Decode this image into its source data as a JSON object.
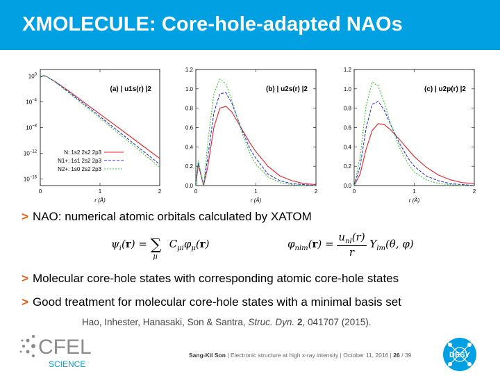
{
  "slide": {
    "title": "XMOLECULE: Core-hole-adapted NAOs",
    "bullets": [
      "NAO: numerical atomic orbitals calculated by XATOM",
      "Molecular core-hole states with corresponding atomic core-hole states",
      "Good treatment for molecular core-hole states with a minimal basis set"
    ],
    "bullet_marker": ">",
    "citation_authors": "Hao, Inhester, Hanasaki, Son & Santra,",
    "citation_journal": "Struc. Dyn.",
    "citation_volume": "2",
    "citation_rest": ", 041707 (2015).",
    "footer": {
      "author": "Sang-Kil Son",
      "talk": "Electronic structure at high x-ray intensity",
      "date": "October 11, 2016",
      "page": "26",
      "total": "39"
    },
    "logos": {
      "cfel_top": "CFEL",
      "cfel_bottom": "SCIENCE",
      "desy": "DESY"
    }
  },
  "colors": {
    "title_bar": "#00a0e3",
    "bullet_marker": "#e9590c",
    "series_n": "#e8212b",
    "series_n1": "#2f2fe8",
    "series_n2": "#2ecc2e"
  },
  "chart_data": [
    {
      "type": "line",
      "panel": "(a)",
      "title": "(a) | u1s(r) |2",
      "xlabel": "r (Å)",
      "ylabel": "",
      "yscale": "log",
      "xlim": [
        0,
        2
      ],
      "ylim": [
        1e-17,
        10.0
      ],
      "xticks": [
        "0",
        "1",
        "2"
      ],
      "yticks": [
        "10^0",
        "10^-4",
        "10^-8",
        "10^-12",
        "10^-16"
      ],
      "legend_position": "bottom-left",
      "series": [
        {
          "name": "N: 1s2 2s2 2p3",
          "x": [
            0,
            0.05,
            0.1,
            0.25,
            0.5,
            0.75,
            1.0,
            1.25,
            1.5,
            1.75,
            2.0
          ],
          "y": [
            0.6,
            1.1,
            0.85,
            0.13,
            0.0033,
            6e-05,
            1.2e-06,
            2.3e-08,
            4.5e-10,
            8.5e-12,
            1.6e-13
          ]
        },
        {
          "name": "N1+: 1s1 2s2 2p3",
          "x": [
            0,
            0.05,
            0.1,
            0.25,
            0.5,
            0.75,
            1.0,
            1.25,
            1.5,
            1.75,
            2.0
          ],
          "y": [
            0.6,
            1.15,
            0.9,
            0.12,
            0.0022,
            3.4e-05,
            5e-07,
            7e-09,
            1e-10,
            1.4e-12,
            2e-14
          ]
        },
        {
          "name": "N2+: 1s0 2s2 2p3",
          "x": [
            0,
            0.05,
            0.1,
            0.25,
            0.5,
            0.75,
            1.0,
            1.25,
            1.5,
            1.75,
            2.0
          ],
          "y": [
            0.6,
            1.2,
            0.95,
            0.11,
            0.0016,
            2.2e-05,
            2.8e-07,
            3.6e-09,
            4.5e-11,
            5.5e-13,
            7e-15
          ]
        }
      ]
    },
    {
      "type": "line",
      "panel": "(b)",
      "title": "(b) | u2s(r) |2",
      "xlabel": "r (Å)",
      "ylabel": "",
      "xlim": [
        0,
        2
      ],
      "ylim": [
        0,
        1.2
      ],
      "xticks": [
        "0",
        "1",
        "2"
      ],
      "yticks": [
        "0.0",
        "0.2",
        "0.4",
        "0.6",
        "0.8",
        "1.0",
        "1.2"
      ],
      "series": [
        {
          "name": "N: 1s2 2s2 2p3",
          "x": [
            0,
            0.04,
            0.08,
            0.13,
            0.2,
            0.3,
            0.4,
            0.5,
            0.6,
            0.75,
            0.9,
            1.0,
            1.2,
            1.4,
            1.6,
            1.8,
            2.0
          ],
          "y": [
            0,
            0.22,
            0.12,
            0.0,
            0.2,
            0.6,
            0.8,
            0.82,
            0.76,
            0.6,
            0.44,
            0.35,
            0.2,
            0.1,
            0.05,
            0.02,
            0.01
          ]
        },
        {
          "name": "N1+: 1s1 2s2 2p3",
          "x": [
            0,
            0.04,
            0.08,
            0.13,
            0.2,
            0.3,
            0.4,
            0.5,
            0.6,
            0.75,
            0.9,
            1.0,
            1.2,
            1.4,
            1.6,
            1.8,
            2.0
          ],
          "y": [
            0,
            0.24,
            0.13,
            0.0,
            0.3,
            0.75,
            0.95,
            0.96,
            0.85,
            0.6,
            0.38,
            0.28,
            0.12,
            0.05,
            0.02,
            0.01,
            0.0
          ]
        },
        {
          "name": "N2+: 1s0 2s2 2p3",
          "x": [
            0,
            0.04,
            0.08,
            0.13,
            0.2,
            0.3,
            0.4,
            0.5,
            0.6,
            0.75,
            0.9,
            1.0,
            1.2,
            1.4,
            1.6,
            1.8,
            2.0
          ],
          "y": [
            0,
            0.26,
            0.14,
            0.0,
            0.45,
            0.95,
            1.1,
            1.05,
            0.88,
            0.58,
            0.33,
            0.22,
            0.09,
            0.03,
            0.01,
            0.0,
            0.0
          ]
        }
      ]
    },
    {
      "type": "line",
      "panel": "(c)",
      "title": "(c) | u2p(r) |2",
      "xlabel": "r (Å)",
      "ylabel": "",
      "xlim": [
        0,
        2
      ],
      "ylim": [
        0,
        1.2
      ],
      "xticks": [
        "0",
        "1",
        "2"
      ],
      "yticks": [
        "0.0",
        "0.2",
        "0.4",
        "0.6",
        "0.8",
        "1.0",
        "1.2"
      ],
      "series": [
        {
          "name": "N: 1s2 2s2 2p3",
          "x": [
            0,
            0.1,
            0.2,
            0.3,
            0.4,
            0.5,
            0.6,
            0.75,
            0.9,
            1.0,
            1.2,
            1.4,
            1.6,
            1.8,
            2.0
          ],
          "y": [
            0,
            0.12,
            0.38,
            0.57,
            0.64,
            0.63,
            0.58,
            0.48,
            0.37,
            0.3,
            0.19,
            0.11,
            0.06,
            0.03,
            0.02
          ]
        },
        {
          "name": "N1+: 1s1 2s2 2p3",
          "x": [
            0,
            0.1,
            0.2,
            0.3,
            0.4,
            0.5,
            0.6,
            0.75,
            0.9,
            1.0,
            1.2,
            1.4,
            1.6,
            1.8,
            2.0
          ],
          "y": [
            0,
            0.2,
            0.6,
            0.84,
            0.87,
            0.78,
            0.64,
            0.44,
            0.28,
            0.2,
            0.1,
            0.05,
            0.02,
            0.01,
            0.0
          ]
        },
        {
          "name": "N2+: 1s0 2s2 2p3",
          "x": [
            0,
            0.1,
            0.2,
            0.3,
            0.4,
            0.5,
            0.6,
            0.75,
            0.9,
            1.0,
            1.2,
            1.4,
            1.6,
            1.8,
            2.0
          ],
          "y": [
            0,
            0.3,
            0.83,
            1.07,
            1.03,
            0.86,
            0.65,
            0.4,
            0.22,
            0.14,
            0.06,
            0.02,
            0.01,
            0.0,
            0.0
          ]
        }
      ]
    }
  ]
}
